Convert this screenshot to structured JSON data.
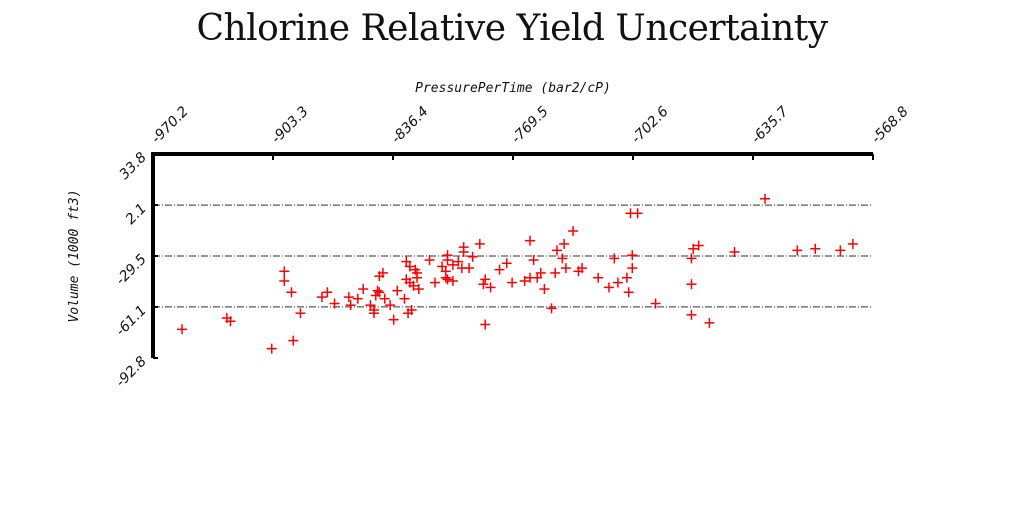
{
  "chart_data": {
    "type": "scatter",
    "title": "Chlorine Relative Yield Uncertainty",
    "xlabel": "PressurePerTime (bar2/cP)",
    "ylabel": "Volume (1000 ft3)",
    "xlim": [
      -970.2,
      -568.8
    ],
    "ylim": [
      -92.8,
      33.8
    ],
    "x_ticks": [
      "-970.2",
      "-903.3",
      "-836.4",
      "-769.5",
      "-702.6",
      "-635.7",
      "-568.8"
    ],
    "y_ticks": [
      "33.8",
      "2.1",
      "-29.5",
      "-61.1",
      "-92.8"
    ],
    "grid": "horizontal dashed",
    "marker": "+",
    "color": "#ff0000",
    "x": [
      -954,
      -929,
      -927,
      -904,
      -897,
      -897,
      -893,
      -892,
      -888,
      -876,
      -873,
      -869,
      -860,
      -861,
      -856,
      -853,
      -849,
      -847,
      -847,
      -846,
      -845,
      -844,
      -841,
      -844,
      -842,
      -838,
      -836,
      -834,
      -830,
      -829,
      -829,
      -828,
      -826,
      -827,
      -823,
      -823,
      -827,
      -825,
      -824,
      -822,
      -813,
      -816,
      -807,
      -809,
      -807,
      -806,
      -806,
      -806,
      -803,
      -803,
      -797,
      -798,
      -800,
      -792,
      -797,
      -794,
      -788,
      -782,
      -786,
      -785,
      -785,
      -777,
      -773,
      -770,
      -763,
      -760,
      -758,
      -756,
      -760,
      -754,
      -752,
      -746,
      -748,
      -745,
      -742,
      -741,
      -740,
      -736,
      -731,
      -733,
      -722,
      -716,
      -713,
      -700,
      -704,
      -703,
      -711,
      -705,
      -706,
      -703,
      -690,
      -666,
      -669,
      -670,
      -670,
      -670,
      -660,
      -646,
      -629,
      -611,
      -587,
      -601,
      -580
    ],
    "y": [
      -75,
      -68,
      -70,
      -87,
      -39,
      -45,
      -52,
      -82,
      -65,
      -55,
      -52,
      -59,
      -60,
      -55,
      -56,
      -50,
      -60,
      -63,
      -65,
      -54,
      -51,
      -52,
      -56,
      -42,
      -40,
      -60,
      -69,
      -51,
      -56,
      -44,
      -33,
      -65,
      -63,
      -36,
      -40,
      -43,
      -46,
      -48,
      -38,
      -50,
      -46,
      -32,
      -39,
      -36,
      -43,
      -44,
      -29,
      -32,
      -45,
      -35,
      -27,
      -37,
      -33,
      -30,
      -24,
      -37,
      -22,
      -49,
      -47,
      -72,
      -44,
      -38,
      -34,
      -46,
      -45,
      -43,
      -32,
      -43,
      -20,
      -40,
      -50,
      -40,
      -62,
      -26,
      -31,
      -22,
      -37,
      -14,
      -37,
      -39,
      -43,
      -49,
      -31,
      -3,
      -3,
      -37,
      -46,
      -52,
      -43,
      -29,
      -59,
      -23,
      -25,
      -31,
      -47,
      -66,
      -71,
      -27,
      6,
      -26,
      -26,
      -25,
      -22
    ],
    "y_extra_note": ""
  }
}
